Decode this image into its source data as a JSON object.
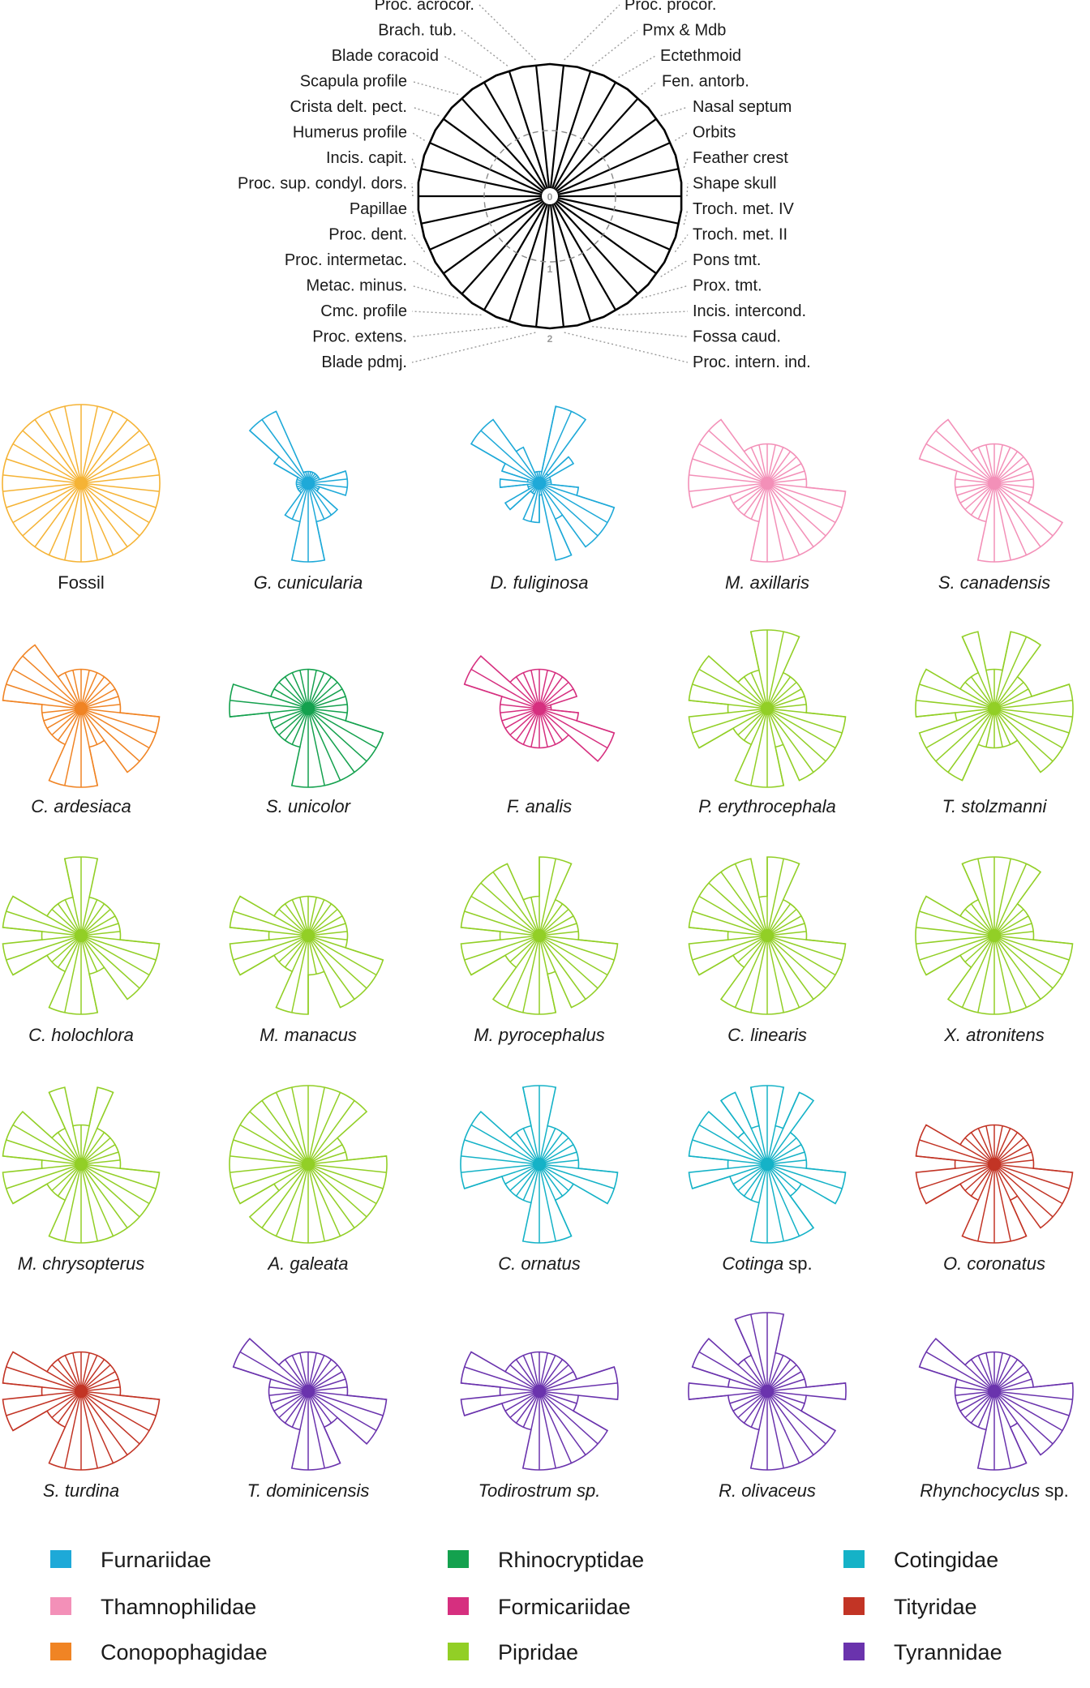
{
  "figure": {
    "axes": [
      "Proc. procor.",
      "Pmx & Mdb",
      "Ectethmoid",
      "Fen. antorb.",
      "Nasal septum",
      "Orbits",
      "Feather crest",
      "Shape skull",
      "Troch. met. IV",
      "Troch. met. II",
      "Pons tmt.",
      "Prox. tmt.",
      "Incis. intercond.",
      "Fossa caud.",
      "Proc. intern. ind.",
      "Blade pdmj.",
      "Proc. extens.",
      "Cmc. profile",
      "Metac. minus.",
      "Proc. intermetac.",
      "Proc. dent.",
      "Papillae",
      "Proc. sup. condyl. dors.",
      "Incis. capit.",
      "Humerus profile",
      "Crista delt. pect.",
      "Scapula profile",
      "Blade coracoid",
      "Brach. tub.",
      "Proc. acrocor."
    ],
    "rings": [
      "0",
      "1",
      "2"
    ],
    "colors": {
      "fossil": "#f5b335",
      "Furnariidae": "#1ea9d8",
      "Thamnophilidae": "#f390b8",
      "Conopophagidae": "#f08424",
      "Rhinocryptidae": "#14a14e",
      "Formicariidae": "#d62f7f",
      "Cotingidae": "#15b2c7",
      "Pipridae": "#92cf26",
      "Tityridae": "#c23425",
      "Tyrannidae": "#6a33ad"
    }
  },
  "chart_data": {
    "type": "radar",
    "title": "",
    "scale": {
      "min": 0,
      "max": 2,
      "ticks": [
        0,
        1,
        2
      ]
    },
    "axes": [
      "Proc. procor.",
      "Pmx & Mdb",
      "Ectethmoid",
      "Fen. antorb.",
      "Nasal septum",
      "Orbits",
      "Feather crest",
      "Shape skull",
      "Troch. met. IV",
      "Troch. met. II",
      "Pons tmt.",
      "Prox. tmt.",
      "Incis. intercond.",
      "Fossa caud.",
      "Proc. intern. ind.",
      "Blade pdmj.",
      "Proc. extens.",
      "Cmc. profile",
      "Metac. minus.",
      "Proc. intermetac.",
      "Proc. dent.",
      "Papillae",
      "Proc. sup. condyl. dors.",
      "Incis. capit.",
      "Humerus profile",
      "Crista delt. pect.",
      "Scapula profile",
      "Blade coracoid",
      "Brach. tub.",
      "Proc. acrocor."
    ],
    "series": [
      {
        "name": "Fossil",
        "genus": "Fossil",
        "suffix": "",
        "italic": false,
        "family": "fossil",
        "values": [
          2,
          2,
          2,
          2,
          2,
          2,
          2,
          2,
          2,
          2,
          2,
          2,
          2,
          2,
          2,
          2,
          2,
          2,
          2,
          2,
          2,
          2,
          2,
          2,
          2,
          2,
          2,
          2,
          2,
          2
        ]
      },
      {
        "name": "G. cunicularia",
        "genus": "G. cunicularia",
        "suffix": "",
        "italic": true,
        "family": "Furnariidae",
        "values": [
          0.3,
          0.3,
          0.3,
          0.3,
          0.3,
          0.3,
          1.0,
          1.0,
          1.0,
          0.3,
          0.3,
          1.0,
          1.0,
          1.0,
          2.0,
          2.0,
          1.0,
          1.0,
          0.3,
          0.3,
          0.3,
          0.3,
          0.3,
          0.3,
          0.3,
          1.0,
          2.0,
          2.0,
          0.3,
          0.3
        ]
      },
      {
        "name": "D. fuliginosa",
        "genus": "D. fuliginosa",
        "suffix": "",
        "italic": true,
        "family": "Furnariidae",
        "values": [
          0.3,
          2.0,
          2.0,
          0.3,
          1.0,
          0.3,
          0.3,
          0.3,
          1.0,
          2.0,
          2.0,
          2.0,
          1.0,
          2.0,
          0.3,
          1.0,
          1.0,
          0.3,
          0.3,
          1.0,
          0.3,
          0.3,
          1.0,
          0.3,
          1.0,
          2.0,
          2.0,
          1.0,
          0.3,
          0.3
        ]
      },
      {
        "name": "M. axillaris",
        "genus": "M. axillaris",
        "suffix": "",
        "italic": true,
        "family": "Thamnophilidae",
        "values": [
          1,
          1,
          1,
          1,
          1,
          1,
          1,
          1,
          2,
          2,
          2,
          2,
          2,
          2,
          2,
          2,
          1,
          1,
          1,
          1,
          1,
          2,
          2,
          2,
          2,
          2,
          2,
          1,
          1,
          1
        ]
      },
      {
        "name": "S. canadensis",
        "genus": "S. canadensis",
        "suffix": "",
        "italic": true,
        "family": "Thamnophilidae",
        "values": [
          1,
          1,
          1,
          1,
          1,
          1,
          1,
          1,
          1,
          1,
          2,
          2,
          2,
          2,
          2,
          2,
          1,
          1,
          1,
          1,
          1,
          1,
          1,
          1,
          2,
          2,
          2,
          1,
          1,
          1
        ]
      },
      {
        "name": "C. ardesiaca",
        "genus": "C. ardesiaca",
        "suffix": "",
        "italic": true,
        "family": "Conopophagidae",
        "values": [
          1,
          1,
          1,
          1,
          1,
          1,
          1,
          1,
          2,
          2,
          2,
          2,
          1,
          1,
          2,
          2,
          2,
          1,
          1,
          1,
          1,
          1,
          1,
          2,
          2,
          2,
          2,
          1,
          1,
          1
        ]
      },
      {
        "name": "S. unicolor",
        "genus": "S. unicolor",
        "suffix": "",
        "italic": true,
        "family": "Rhinocryptidae",
        "values": [
          1,
          1,
          1,
          1,
          1,
          1,
          1,
          1,
          1,
          2,
          2,
          2,
          2,
          2,
          2,
          2,
          1,
          1,
          1,
          1,
          1,
          1,
          2,
          2,
          1,
          1,
          1,
          1,
          1,
          1
        ]
      },
      {
        "name": "F. analis",
        "genus": "F. analis",
        "suffix": "",
        "italic": true,
        "family": "Formicariidae",
        "values": [
          1,
          1,
          1,
          1,
          1,
          1,
          0.3,
          0.3,
          1,
          2,
          2,
          1,
          1,
          1,
          1,
          1,
          1,
          1,
          1,
          1,
          1,
          1,
          1,
          1,
          2,
          2,
          1,
          1,
          1,
          1
        ]
      },
      {
        "name": "P. erythrocephala",
        "genus": "P. erythrocephala",
        "suffix": "",
        "italic": true,
        "family": "Pipridae",
        "values": [
          2,
          2,
          1,
          1,
          1,
          1,
          1,
          1,
          2,
          2,
          2,
          2,
          2,
          1,
          2,
          2,
          2,
          1,
          1,
          1,
          2,
          2,
          1,
          2,
          2,
          2,
          1,
          1,
          1,
          2
        ]
      },
      {
        "name": "T. stolzmanni",
        "genus": "T. stolzmanni",
        "suffix": "",
        "italic": true,
        "family": "Pipridae",
        "values": [
          1,
          2,
          2,
          1,
          1,
          1,
          2,
          2,
          2,
          2,
          2,
          2,
          1,
          1,
          1,
          1,
          1,
          2,
          2,
          2,
          2,
          1,
          2,
          2,
          2,
          1,
          1,
          1,
          2,
          1
        ]
      },
      {
        "name": "C. holochlora",
        "genus": "C. holochlora",
        "suffix": "",
        "italic": true,
        "family": "Pipridae",
        "values": [
          2,
          1,
          1,
          1,
          1,
          1,
          1,
          1,
          2,
          2,
          2,
          2,
          1,
          1,
          2,
          2,
          2,
          1,
          1,
          1,
          2,
          2,
          1,
          2,
          2,
          1,
          1,
          1,
          1,
          2
        ]
      },
      {
        "name": "M. manacus",
        "genus": "M. manacus",
        "suffix": "",
        "italic": true,
        "family": "Pipridae",
        "values": [
          1,
          1,
          1,
          1,
          1,
          1,
          1,
          1,
          1,
          2,
          2,
          2,
          2,
          1,
          1,
          2,
          2,
          1,
          1,
          1,
          2,
          2,
          1,
          2,
          2,
          1,
          1,
          1,
          1,
          1
        ]
      },
      {
        "name": "M. pyrocephalus",
        "genus": "M. pyrocephalus",
        "suffix": "",
        "italic": true,
        "family": "Pipridae",
        "values": [
          2,
          2,
          1,
          1,
          1,
          1,
          1,
          1,
          2,
          2,
          2,
          2,
          2,
          1,
          2,
          2,
          2,
          2,
          1,
          1,
          2,
          2,
          1,
          2,
          2,
          2,
          2,
          2,
          1,
          1
        ]
      },
      {
        "name": "C. linearis",
        "genus": "C. linearis",
        "suffix": "",
        "italic": true,
        "family": "Pipridae",
        "values": [
          2,
          2,
          1,
          1,
          1,
          1,
          1,
          1,
          2,
          2,
          2,
          2,
          2,
          2,
          2,
          2,
          2,
          2,
          1,
          1,
          2,
          2,
          1,
          2,
          2,
          2,
          2,
          2,
          2,
          1
        ]
      },
      {
        "name": "X. atronitens",
        "genus": "X. atronitens",
        "suffix": "",
        "italic": true,
        "family": "Pipridae",
        "values": [
          2,
          2,
          2,
          1,
          1,
          1,
          1,
          1,
          2,
          2,
          2,
          2,
          2,
          2,
          2,
          2,
          2,
          2,
          1,
          1,
          2,
          2,
          2,
          2,
          2,
          1,
          1,
          1,
          2,
          2
        ]
      },
      {
        "name": "M. chrysopterus",
        "genus": "M. chrysopterus",
        "suffix": "",
        "italic": true,
        "family": "Pipridae",
        "values": [
          1,
          2,
          1,
          1,
          1,
          1,
          1,
          1,
          2,
          2,
          2,
          2,
          2,
          2,
          2,
          2,
          2,
          1,
          1,
          1,
          2,
          2,
          1,
          2,
          2,
          2,
          1,
          1,
          2,
          1
        ]
      },
      {
        "name": "A. galeata",
        "genus": "A. galeata",
        "suffix": "",
        "italic": true,
        "family": "Pipridae",
        "values": [
          2,
          2,
          2,
          2,
          1,
          1,
          1,
          2,
          2,
          2,
          2,
          2,
          2,
          2,
          2,
          2,
          2,
          2,
          2,
          1,
          2,
          2,
          2,
          2,
          2,
          2,
          2,
          2,
          2,
          2
        ]
      },
      {
        "name": "C. ornatus",
        "genus": "C. ornatus",
        "suffix": "",
        "italic": true,
        "family": "Cotingidae",
        "values": [
          2,
          1,
          1,
          1,
          1,
          1,
          1,
          1,
          2,
          2,
          1,
          1,
          1,
          2,
          2,
          2,
          1,
          1,
          1,
          1,
          1,
          2,
          2,
          2,
          2,
          2,
          1,
          1,
          1,
          2
        ]
      },
      {
        "name": "Cotinga sp.",
        "genus": "Cotinga",
        "suffix": " sp.",
        "italic": true,
        "family": "Cotingidae",
        "values": [
          2,
          1,
          2,
          1,
          1,
          1,
          1,
          1,
          2,
          2,
          1,
          1,
          2,
          2,
          2,
          2,
          1,
          1,
          1,
          1,
          1,
          2,
          1,
          2,
          2,
          2,
          1,
          2,
          1,
          2
        ]
      },
      {
        "name": "O. coronatus",
        "genus": "O. coronatus",
        "suffix": "",
        "italic": true,
        "family": "Tityridae",
        "values": [
          1,
          1,
          1,
          1,
          1,
          1,
          1,
          1,
          2,
          2,
          2,
          2,
          1,
          2,
          2,
          2,
          2,
          1,
          1,
          1,
          2,
          2,
          1,
          2,
          2,
          1,
          1,
          1,
          1,
          1
        ]
      },
      {
        "name": "S. turdina",
        "genus": "S. turdina",
        "suffix": "",
        "italic": true,
        "family": "Tityridae",
        "values": [
          1,
          1,
          1,
          1,
          1,
          1,
          1,
          1,
          2,
          2,
          2,
          2,
          2,
          2,
          2,
          2,
          2,
          1,
          1,
          1,
          2,
          2,
          1,
          2,
          2,
          1,
          1,
          1,
          1,
          1
        ]
      },
      {
        "name": "T. dominicensis",
        "genus": "T. dominicensis",
        "suffix": "",
        "italic": true,
        "family": "Tyrannidae",
        "values": [
          1,
          1,
          1,
          1,
          1,
          1,
          1,
          1,
          2,
          2,
          2,
          1,
          1,
          2,
          2,
          2,
          1,
          1,
          1,
          1,
          1,
          1,
          1,
          1,
          2,
          2,
          1,
          1,
          1,
          1
        ]
      },
      {
        "name": "Todirostrum sp.",
        "genus": "Todirostrum sp.",
        "suffix": "",
        "italic": true,
        "family": "Tyrannidae",
        "values": [
          1,
          1,
          1,
          1,
          1,
          1,
          2,
          2,
          1,
          1,
          2,
          2,
          2,
          2,
          2,
          2,
          1,
          1,
          1,
          1,
          1,
          2,
          1,
          2,
          2,
          1,
          1,
          1,
          1,
          1
        ]
      },
      {
        "name": "R. olivaceus",
        "genus": "R. olivaceus",
        "suffix": "",
        "italic": true,
        "family": "Tyrannidae",
        "values": [
          2,
          1,
          1,
          1,
          1,
          1,
          1,
          2,
          1,
          1,
          2,
          2,
          2,
          2,
          2,
          2,
          1,
          1,
          1,
          1,
          1,
          1,
          2,
          1,
          2,
          2,
          1,
          1,
          2,
          2
        ]
      },
      {
        "name": "Rhynchocyclus sp.",
        "genus": "Rhynchocyclus",
        "suffix": " sp.",
        "italic": true,
        "family": "Tyrannidae",
        "values": [
          1,
          1,
          1,
          1,
          1,
          1,
          1,
          2,
          2,
          2,
          2,
          2,
          1,
          2,
          2,
          2,
          1,
          1,
          1,
          1,
          1,
          1,
          1,
          1,
          2,
          2,
          1,
          1,
          1,
          1
        ]
      }
    ],
    "legend": [
      "Furnariidae",
      "Thamnophilidae",
      "Conopophagidae",
      "Rhinocryptidae",
      "Formicariidae",
      "Pipridae",
      "Cotingidae",
      "Tityridae",
      "Tyrannidae"
    ]
  }
}
